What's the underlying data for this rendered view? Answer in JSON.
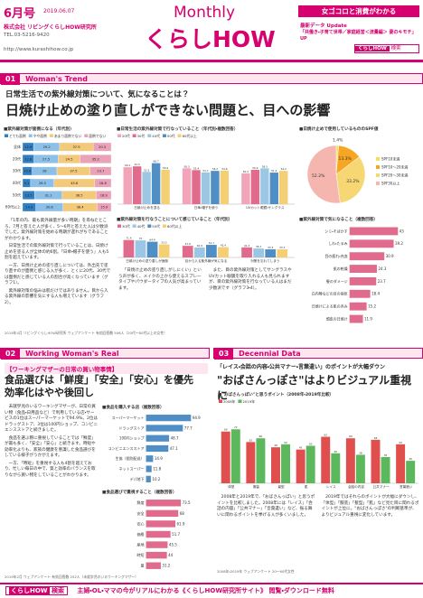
{
  "header": {
    "issue": "6月号",
    "date": "2019.06.07",
    "company": "株式会社 リビングくらしHOW研究所",
    "tel": "TEL.03-5216-9420",
    "url": "http://www.kurashihow.co.jp",
    "monthly": "Monthly",
    "brand": "くらしHOW",
    "tagline": "女ゴコロと消費がわかる",
    "update_label": "最新データ Update",
    "update_text": "「共働き・子育て世帯／家庭経営＜流量編＞ 妻のキモチ」UP",
    "search_logo": "くらしHOW",
    "search": "検索"
  },
  "section1": {
    "number": "01",
    "label": "Woman's Trend",
    "question": "日常生活での紫外線対策について、気になることは？",
    "headline": "日焼け止めの塗り直しができない問題と、目への影響",
    "body": [
      "「1年の内、最も紫外線量が多い時期」を尋ねたところ、7月と答えた人が多く、5〜6月と答えた人は少数派でした。紫外線対策を始める時期が遅れがちであることがわかります。",
      "日常生活での紫外線対策で行っていることは、日焼け止めを塗る人が全体の約6割。「日傘・帽子を使う」人も5割を超えています。",
      "一方、日焼け止めの塗り直しについては、外出先で塗り直すのが面倒と感じる人が多く、とくに20代、30代では面倒だと感じている人の割合が高くなっています（グラフ1）。",
      "紫外線対策の悩みは肌だけではありません。目から入る紫外線の影響を気にする人も増えています（グラフ2）。"
    ],
    "middle_body": [
      "「日焼け止めの塗り直しがしにくい」という声が多く、メイクの上から使えるスプレータイプやパウダータイプの人気が高まっています。",
      "また、目の紫外線対策としてサングラスやUVカット眼鏡を取り入れる人も見られますが、目の紫外線対策を行なっている人はまだ少数派です（グラフ3・4）。"
    ],
    "note": "2019年4月 リビングくらしHOW研究所 ウェブアンケート 有効回答数 506人（20代〜60代以上の女性）"
  },
  "charts": [
    {
      "type": "stacked-hbar",
      "title": "■紫外線対策が面倒になる（年代別）",
      "categories": [
        "全体",
        "20代",
        "30代",
        "40代",
        "50代",
        "60代以上"
      ],
      "xlim": [
        0,
        100
      ],
      "series": [
        {
          "name": "とても面倒",
          "color": "#2f7fc1",
          "values": [
            12.6,
            12.8,
            10.8,
            9.1,
            13.5,
            14.9
          ]
        },
        {
          "name": "やや面倒",
          "color": "#8cc0e8",
          "values": [
            29.2,
            27.5,
            28.0,
            26.5,
            31.1,
            30.8
          ]
        },
        {
          "name": "あまり面倒でない",
          "color": "#f3c97a",
          "values": [
            37.9,
            24.5,
            37.5,
            45.6,
            38.5,
            38.4
          ]
        },
        {
          "name": "面倒でない",
          "color": "#e9a2b8",
          "values": [
            20.3,
            35.2,
            23.7,
            18.8,
            16.9,
            15.9
          ]
        }
      ]
    },
    {
      "type": "grouped-bar",
      "title": "■日常生活の紫外線対策で行なっていること（年代別・複数回答）",
      "categories": [
        "日焼け止めを塗る",
        "日傘・帽子を使う",
        "UVカット眼鏡・サングラス"
      ],
      "ylim": [
        0,
        100
      ],
      "series": [
        {
          "name": "20代",
          "color": "#f2a5b8",
          "values": [
            60.1,
            58.3,
            50.2
          ]
        },
        {
          "name": "30代",
          "color": "#e16b8c",
          "values": [
            61.5,
            55.4,
            55.9
          ]
        },
        {
          "name": "40代",
          "color": "#9cc7e4",
          "values": [
            52.5,
            51.7,
            58.3
          ]
        },
        {
          "name": "50代",
          "color": "#4f8fc6",
          "values": [
            66.7,
            54.2,
            51.4
          ]
        },
        {
          "name": "60代以上",
          "color": "#f5cf73",
          "values": [
            55.9,
            54.6,
            54.2
          ]
        }
      ]
    },
    {
      "type": "pie",
      "title": "■日焼け止めで使用しているもののSPF値",
      "labels": [
        "SPF10未満",
        "SPF10〜20未満",
        "SPF20〜30未満",
        "SPF30以上"
      ],
      "values": [
        1.4,
        13.3,
        33.2,
        52.2
      ],
      "value_labels": [
        "1.4%",
        "13.3%",
        "33.2%",
        "52.2%"
      ],
      "colors": [
        "#f0e060",
        "#f6a623",
        "#f7d774",
        "#f6b6b0"
      ]
    },
    {
      "type": "grouped-bar",
      "title": "■紫外線対策を行なうことについて感じていること（年代別）",
      "categories": [
        "日焼け止めの塗り直しが面倒",
        "目から入る紫外線が気になる",
        "対策を忘れてしまう"
      ],
      "ylim": [
        0,
        100
      ],
      "series": [
        {
          "name": "30代",
          "color": "#e16b8c",
          "values": [
            71.4,
            47.6,
            41.3
          ]
        },
        {
          "name": "40代",
          "color": "#9cc7e4",
          "values": [
            70.0,
            40.9,
            36.7
          ]
        },
        {
          "name": "50代",
          "color": "#4f8fc6",
          "values": [
            64.4,
            51.7,
            33.3
          ]
        },
        {
          "name": "60代以上",
          "color": "#f5cf73",
          "values": [
            53.5,
            42.4,
            33.3
          ]
        }
      ]
    },
    {
      "type": "hbar",
      "title": "■紫外線対策で気になること（複数回答）",
      "categories": [
        "シミ・そばかす",
        "しわ・たるみ",
        "目の疲れ・充血",
        "肌の乾燥",
        "髪のダメージ",
        "白内障などの目の病気",
        "日焼けによる肌の赤み",
        "頭皮の日焼け"
      ],
      "values": [
        43.0,
        39.2,
        30.9,
        24.3,
        23.7,
        18.4,
        15.2,
        11.9
      ],
      "xlim": [
        0,
        50
      ],
      "color": "#e16b8c"
    },
    {
      "type": "hbar",
      "title": "■食品を購入する店（複数回答）",
      "categories": [
        "スーパーマーケット",
        "ドラッグストア",
        "100円ショップ",
        "コンビニエンスストア",
        "生協（個別配送）",
        "ネットスーパー",
        "デパ地下"
      ],
      "values": [
        94.9,
        77.7,
        48.7,
        47.1,
        14.9,
        11.8,
        10.2
      ],
      "xlim": [
        0,
        100
      ],
      "color": "#4f8fc6"
    },
    {
      "type": "hbar",
      "title": "■食品選びで重視すること（複数回答）",
      "categories": [
        "鮮度",
        "安全",
        "安心",
        "価格",
        "産地",
        "時短",
        "量"
      ],
      "values": [
        73.5,
        68.0,
        61.9,
        51.7,
        45.5,
        44.0,
        31.2
      ],
      "xlim": [
        0,
        100
      ],
      "color": "#e16b8c"
    },
    {
      "type": "grouped-bar",
      "title": "■\"おばさんっぽい\"と思うポイント（2008年・2019年比較）",
      "categories": [
        "体型",
        "服装",
        "髪型",
        "肌",
        "レイス",
        "会話の内容",
        "公共マナー",
        "言葉遣い"
      ],
      "ylim": [
        0,
        100
      ],
      "series": [
        {
          "name": "2008年",
          "color": "#e04e4e",
          "values": [
            69.0,
            55.0,
            48.0,
            45.0,
            62.0,
            60.0,
            58.0,
            52.0
          ]
        },
        {
          "name": "2019年",
          "color": "#5cb85c",
          "values": [
            72.0,
            60.0,
            52.0,
            50.0,
            40.0,
            38.0,
            35.0,
            30.0
          ]
        }
      ]
    }
  ],
  "section2": {
    "number": "02",
    "label": "Working Woman's Real",
    "sub": "【ワーキングマザーの日常の買い物事情】",
    "headline": "食品選びは「鮮度」「安全」「安心」を優先 効率化はやや後回し",
    "body": [
      "未就学児のいるワーキングマザーが、日常の買い物（食品・日用品など）で利用している店・サービスの1位はスーパーマーケットで94.9%。2位はドラッグストア、3位は100円ショップ、コンビニエンスストアと続きました。",
      "食品を選ぶ際に重視していることでは「鮮度」が最も多く、「安全」「安心」と続きます。時短や効率化よりも、家族の健康を意識した食品選びをしている様子がうかがえます。",
      "一方、「時短」を重視する人も4割を超えており、忙しい毎日の中で、質と効率のバランスを取りながら買い物をしていることがわかります。"
    ],
    "note": "2019年2月 ウェブアンケート 有効回答数 252人（未就学児のいるワーキングマザー）"
  },
  "section3": {
    "number": "03",
    "label": "Decennial Data",
    "sub": "「レイス・会話の内容・公共マナー・言葉遣い」のポイントが大幅ダウン",
    "headline": "\"おばさんっぽさ\"はよりビジュアル重視に",
    "body": [
      "2008年と2019年で、「おばさんっぽい」と思うポイントを比較しました。2008年には「レイス」「会話の内容」「公共マナー」「言葉遣い」など、振る舞いに関わるポイントを挙げる人が多くいました。",
      "2019年ではそれらのポイントが大幅にダウンし、「体型」「服装」「髪型」「肌」など見た目に関わるポイントが上位に。\"おばさんっぽさ\"の判断基準が、よりビジュアル重視に変化しています。"
    ],
    "note": "2008年・2019年 ウェブアンケート 20〜60代女性"
  },
  "footer": {
    "logo": "くらしHOW",
    "search": "検索",
    "text": "主婦・OL・ママの今がリアルにわかる《くらしHOW研究所サイト》 閲覧・ダウンロード無料"
  }
}
